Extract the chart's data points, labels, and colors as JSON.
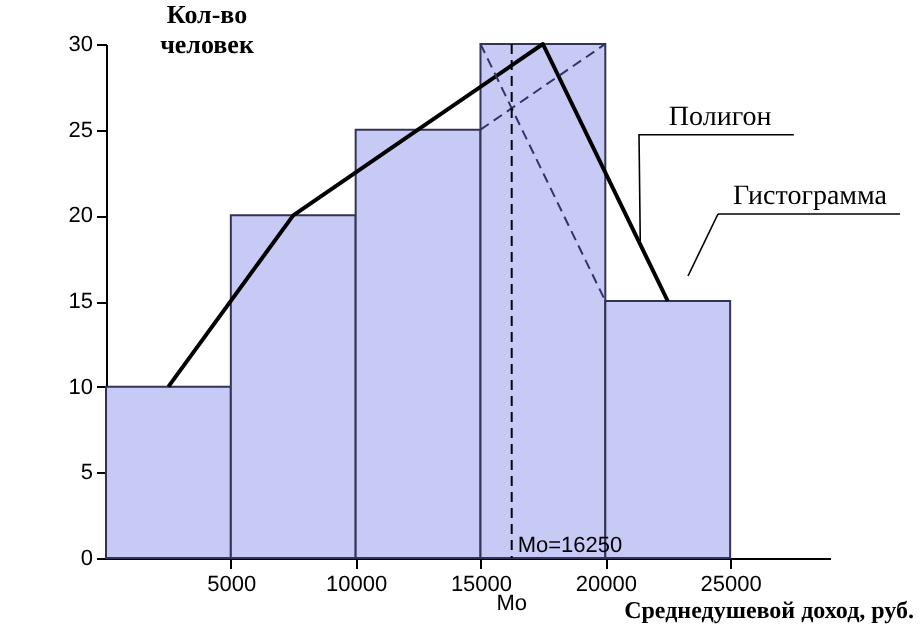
{
  "chart_data": {
    "type": "histogram",
    "xlabel": "Среднедушевой доход, руб.",
    "ylabel": "Кол-во человек",
    "bins": [
      0,
      5000,
      10000,
      15000,
      20000,
      25000
    ],
    "values": [
      10,
      20,
      25,
      30,
      15
    ],
    "color": "#c8caf6",
    "series": [
      {
        "type": "line",
        "x": [
          2500,
          7500,
          12500,
          17500,
          22500
        ],
        "values": [
          10,
          20,
          25,
          30,
          15
        ],
        "color": "#000000",
        "line_style": "solid"
      },
      {
        "type": "line",
        "x": [
          15000,
          20000
        ],
        "values": [
          30,
          15
        ],
        "color": "#333366",
        "line_style": "dashed"
      },
      {
        "type": "line",
        "x": [
          15000,
          20000
        ],
        "values": [
          25,
          30
        ],
        "color": "#333366",
        "line_style": "dashed"
      }
    ],
    "ref_lines": [
      {
        "axis": "x",
        "value": 16250,
        "label": "Mo=16250",
        "line_style": "dashed",
        "color": "#000000"
      }
    ],
    "annotations": [
      {
        "text": "Полигон",
        "x": 21400,
        "y": 18.5
      },
      "Гистограмма",
      {
        "text": "Mo",
        "x": 16250,
        "y": 0
      }
    ],
    "xlim": [
      0,
      29000
    ],
    "xticks": [
      5000,
      10000,
      15000,
      20000,
      25000
    ],
    "ylim": [
      0,
      30
    ],
    "yticks": [
      0,
      5,
      10,
      15,
      20,
      25,
      30
    ],
    "grid": false,
    "marker": "none"
  }
}
